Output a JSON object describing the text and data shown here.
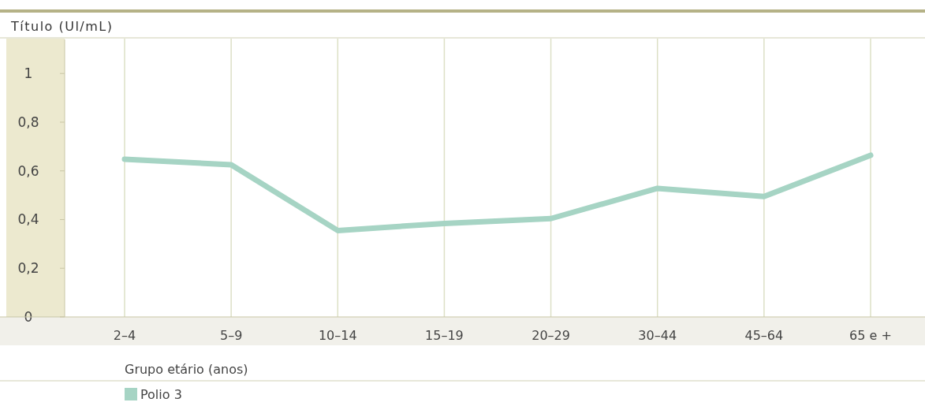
{
  "chart_data": {
    "type": "line",
    "ylabel": "Título (Ul/mL)",
    "xlabel": "Grupo etário (anos)",
    "categories": [
      "2–4",
      "5–9",
      "10–14",
      "15–19",
      "20–29",
      "30–44",
      "45–64",
      "65 e +"
    ],
    "series": [
      {
        "name": "Polio 3",
        "color": "#a6d4c4",
        "values": [
          0.648,
          0.625,
          0.355,
          0.384,
          0.404,
          0.528,
          0.495,
          0.664
        ]
      }
    ],
    "ylim": [
      0,
      1.14
    ],
    "yticks": [
      {
        "value": 0,
        "label": "0"
      },
      {
        "value": 0.2,
        "label": "0,2"
      },
      {
        "value": 0.4,
        "label": "0,4"
      },
      {
        "value": 0.6,
        "label": "0,6"
      },
      {
        "value": 0.8,
        "label": "0,8"
      },
      {
        "value": 1,
        "label": "1"
      }
    ],
    "grid": "x",
    "legend": "bottom",
    "marker": "none",
    "line_style": "solid"
  }
}
